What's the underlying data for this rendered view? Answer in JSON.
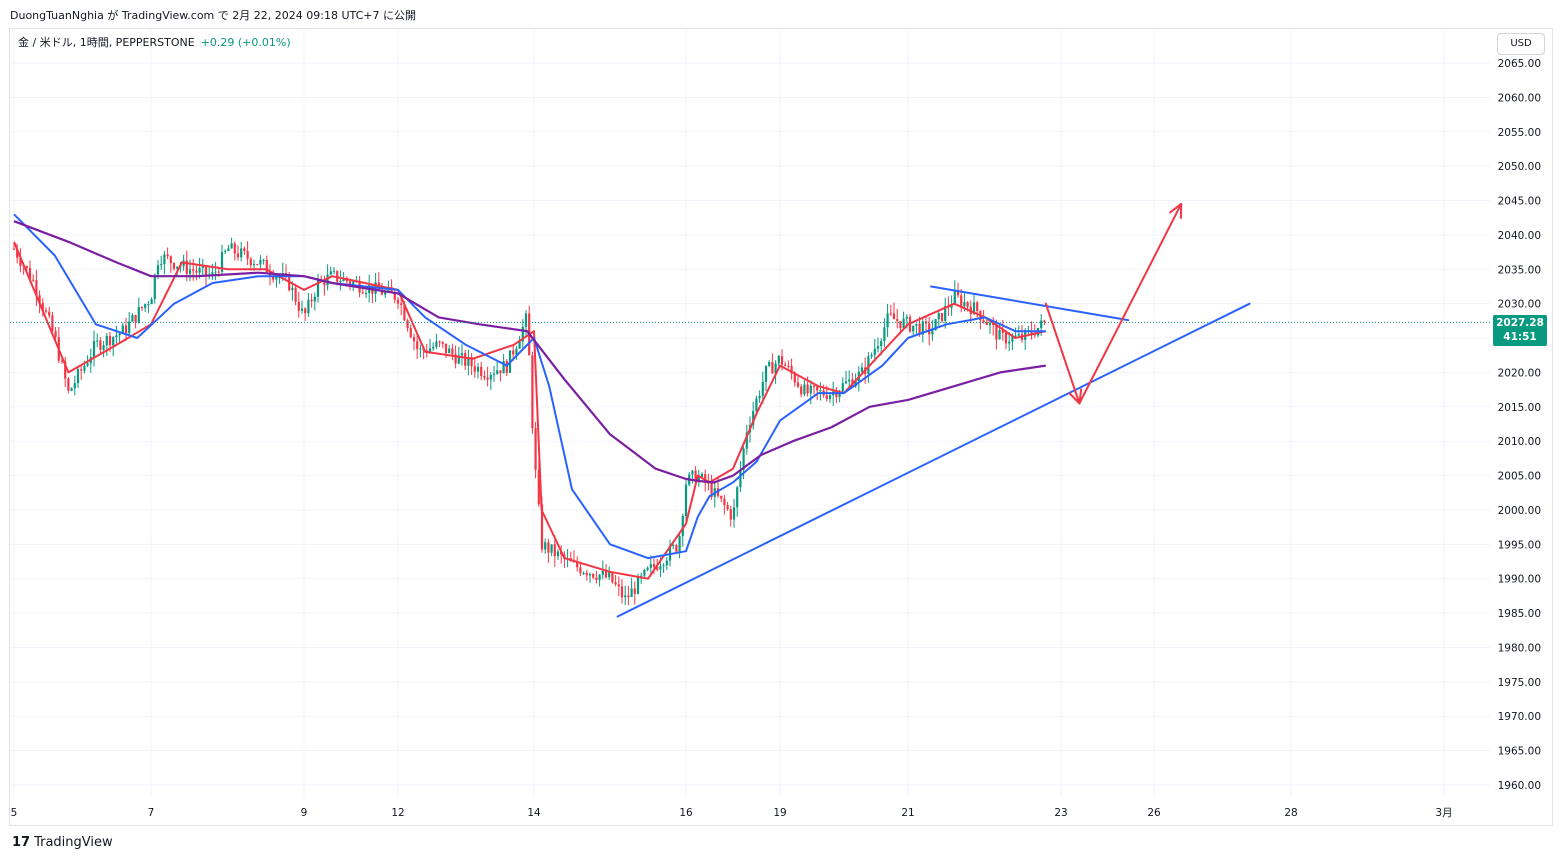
{
  "header": {
    "author_line": "DuongTuanNghia が TradingView.com で 2月 22, 2024 09:18 UTC+7 に公開"
  },
  "legend": {
    "symbol": "金 / 米ドル, 1時間, PEPPERSTONE",
    "change": "+0.29 (+0.01%)"
  },
  "currency_button": "USD",
  "price_tag": {
    "price": "2027.28",
    "countdown": "41:51"
  },
  "brand": {
    "logo": "17",
    "name": "TradingView"
  },
  "colors": {
    "up": "#089981",
    "down": "#f23645",
    "ma_fast": "#f23645",
    "ma_mid": "#2962ff",
    "ma_slow": "#7b1fa2",
    "trendline": "#2962ff",
    "projection": "#f23645",
    "grid": "#f0f3fa"
  },
  "chart_data": {
    "type": "candlestick",
    "title": "",
    "xlabel": "",
    "ylabel": "",
    "ylim": [
      1958,
      2068
    ],
    "grid": true,
    "x_ticks": [
      "5",
      "7",
      "9",
      "12",
      "14",
      "16",
      "19",
      "21",
      "23",
      "26",
      "28",
      "3月"
    ],
    "y_ticks": [
      1960,
      1965,
      1970,
      1975,
      1980,
      1985,
      1990,
      1995,
      2000,
      2005,
      2010,
      2015,
      2020,
      2025,
      2030,
      2035,
      2040,
      2045,
      2050,
      2055,
      2060,
      2065
    ],
    "y_tick_labels": [
      "1960.00",
      "1965.00",
      "1970.00",
      "1975.00",
      "1980.00",
      "1985.00",
      "1990.00",
      "1995.00",
      "2000.00",
      "2005.00",
      "2010.00",
      "2015.00",
      "2020.00",
      "2025.00",
      "2030.00",
      "2035.00",
      "2040.00",
      "2045.00",
      "2050.00",
      "2055.00",
      "2060.00",
      "2065.00"
    ],
    "last_price": 2027.28,
    "price_path": [
      [
        "5",
        2038
      ],
      [
        "5.3",
        2033
      ],
      [
        "5.6",
        2025
      ],
      [
        "5.8",
        2017
      ],
      [
        "6.2",
        2024
      ],
      [
        "6.6",
        2026
      ],
      [
        "7",
        2031
      ],
      [
        "7.1",
        2037
      ],
      [
        "7.5",
        2035
      ],
      [
        "7.8",
        2034
      ],
      [
        "8",
        2038
      ],
      [
        "8.4",
        2036
      ],
      [
        "8.8",
        2033
      ],
      [
        "9",
        2028
      ],
      [
        "9.3",
        2033
      ],
      [
        "9.6",
        2034
      ],
      [
        "12",
        2031
      ],
      [
        "12.3",
        2023
      ],
      [
        "12.6",
        2024
      ],
      [
        "12.9",
        2022
      ],
      [
        "13.3",
        2020
      ],
      [
        "13.6",
        2021
      ],
      [
        "13.9",
        2028
      ],
      [
        "14",
        2008
      ],
      [
        "14.1",
        1995
      ],
      [
        "14.5",
        1992
      ],
      [
        "15",
        1990
      ],
      [
        "15.2",
        1987
      ],
      [
        "15.5",
        1991
      ],
      [
        "15.9",
        1995
      ],
      [
        "16",
        2004
      ],
      [
        "16.4",
        2005
      ],
      [
        "16.8",
        2004
      ],
      [
        "18",
        1999
      ],
      [
        "18.3",
        2012
      ],
      [
        "18.7",
        2020
      ],
      [
        "19",
        2022
      ],
      [
        "19.4",
        2017
      ],
      [
        "19.8",
        2017
      ],
      [
        "20.3",
        2020
      ],
      [
        "20.7",
        2028
      ],
      [
        "21",
        2027
      ],
      [
        "21.3",
        2026
      ],
      [
        "21.6",
        2031
      ],
      [
        "21.9",
        2029
      ],
      [
        "22.2",
        2025
      ],
      [
        "22.5",
        2025
      ],
      [
        "22.8",
        2027.28
      ]
    ],
    "series": [
      {
        "name": "",
        "kind": "ma_fast",
        "points": [
          [
            "5",
            2039
          ],
          [
            "5.8",
            2020
          ],
          [
            "6.5",
            2024
          ],
          [
            "7",
            2027
          ],
          [
            "7.4",
            2036
          ],
          [
            "8",
            2035
          ],
          [
            "8.5",
            2035
          ],
          [
            "9",
            2032
          ],
          [
            "9.6",
            2034
          ],
          [
            "12",
            2032
          ],
          [
            "12.4",
            2023
          ],
          [
            "13.1",
            2022
          ],
          [
            "13.7",
            2024
          ],
          [
            "14",
            2026
          ],
          [
            "14.1",
            2000
          ],
          [
            "14.4",
            1993
          ],
          [
            "15",
            1991
          ],
          [
            "15.5",
            1990
          ],
          [
            "16",
            1998
          ],
          [
            "16.5",
            2005
          ],
          [
            "17",
            2004
          ],
          [
            "18",
            2006
          ],
          [
            "18.5",
            2014
          ],
          [
            "19",
            2021
          ],
          [
            "19.6",
            2018
          ],
          [
            "20",
            2017
          ],
          [
            "20.6",
            2023
          ],
          [
            "21",
            2027
          ],
          [
            "21.6",
            2030
          ],
          [
            "22",
            2028
          ],
          [
            "22.4",
            2025
          ],
          [
            "22.8",
            2026
          ]
        ]
      },
      {
        "name": "",
        "kind": "ma_mid",
        "points": [
          [
            "5",
            2043
          ],
          [
            "5.6",
            2037
          ],
          [
            "6.2",
            2027
          ],
          [
            "6.8",
            2025
          ],
          [
            "7.3",
            2030
          ],
          [
            "7.8",
            2033
          ],
          [
            "8.4",
            2034
          ],
          [
            "9",
            2034
          ],
          [
            "9.6",
            2033
          ],
          [
            "12",
            2032
          ],
          [
            "12.4",
            2028
          ],
          [
            "13",
            2024
          ],
          [
            "13.6",
            2021
          ],
          [
            "14",
            2025
          ],
          [
            "14.2",
            2018
          ],
          [
            "14.5",
            2003
          ],
          [
            "15",
            1995
          ],
          [
            "15.5",
            1993
          ],
          [
            "16",
            1994
          ],
          [
            "16.5",
            1999
          ],
          [
            "17",
            2002
          ],
          [
            "18",
            2004
          ],
          [
            "18.5",
            2007
          ],
          [
            "19",
            2013
          ],
          [
            "19.6",
            2017
          ],
          [
            "20",
            2017
          ],
          [
            "20.6",
            2021
          ],
          [
            "21",
            2025
          ],
          [
            "21.5",
            2027
          ],
          [
            "22",
            2028
          ],
          [
            "22.4",
            2026
          ],
          [
            "22.8",
            2026
          ]
        ]
      },
      {
        "name": "",
        "kind": "ma_slow",
        "points": [
          [
            "5",
            2042
          ],
          [
            "5.8",
            2039
          ],
          [
            "6.5",
            2036
          ],
          [
            "7",
            2034
          ],
          [
            "7.6",
            2034
          ],
          [
            "8.4",
            2034.5
          ],
          [
            "9",
            2034
          ],
          [
            "9.6",
            2033
          ],
          [
            "12",
            2031.5
          ],
          [
            "12.6",
            2028
          ],
          [
            "13.2",
            2027
          ],
          [
            "13.9",
            2026
          ],
          [
            "14.4",
            2019
          ],
          [
            "15",
            2011
          ],
          [
            "15.6",
            2006
          ],
          [
            "16",
            2004.5
          ],
          [
            "16.6",
            2004.2
          ],
          [
            "17.2",
            2004
          ],
          [
            "18",
            2005
          ],
          [
            "18.6",
            2008
          ],
          [
            "19.2",
            2010
          ],
          [
            "19.8",
            2012
          ],
          [
            "20.4",
            2015
          ],
          [
            "21",
            2016
          ],
          [
            "21.6",
            2018
          ],
          [
            "22.2",
            2020
          ],
          [
            "22.8",
            2021
          ]
        ]
      }
    ],
    "drawings": [
      {
        "kind": "trendline",
        "from": [
          "15.1",
          1984.5
        ],
        "to": [
          "27.4",
          2030
        ]
      },
      {
        "kind": "trendline",
        "from": [
          "21.3",
          2032.5
        ],
        "to": [
          "24.9",
          2027.6
        ]
      },
      {
        "kind": "arrow",
        "from": [
          "22.8",
          2030
        ],
        "to": [
          "23.4",
          2015.5
        ]
      },
      {
        "kind": "arrow",
        "from": [
          "23.4",
          2015.5
        ],
        "to": [
          "26.4",
          2044.5
        ]
      }
    ]
  }
}
